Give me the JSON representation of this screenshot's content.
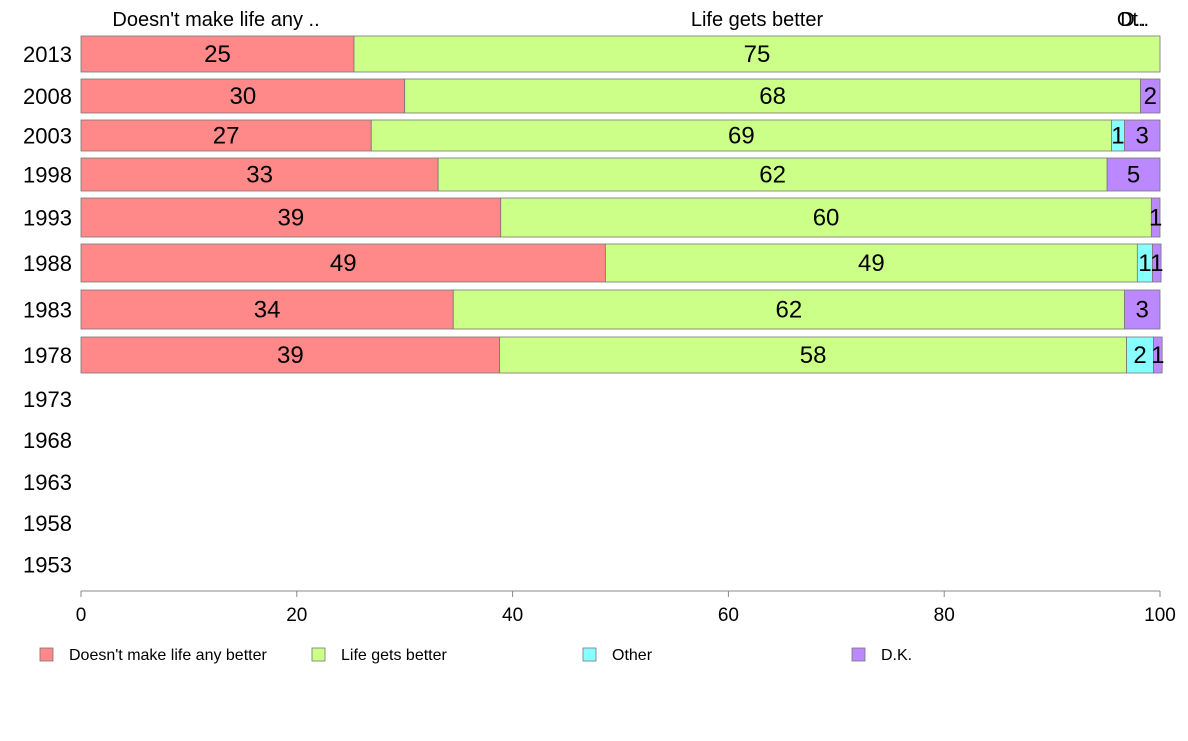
{
  "chart_data": {
    "type": "bar",
    "orientation": "horizontal",
    "stacked": true,
    "title": "",
    "xlabel": "",
    "ylabel": "",
    "xlim": [
      0,
      100
    ],
    "x_ticks": [
      "0",
      "20",
      "40",
      "60",
      "80",
      "100"
    ],
    "categories": [
      "2013",
      "2008",
      "2003",
      "1998",
      "1993",
      "1988",
      "1983",
      "1978",
      "1973",
      "1968",
      "1963",
      "1958",
      "1953"
    ],
    "top_labels": [
      "Doesn't make life any ..",
      "Life gets better",
      "Ot..",
      "D.."
    ],
    "series": [
      {
        "name": "Doesn't make life any better",
        "color": "#ff8888",
        "values": [
          25.3,
          30.0,
          26.9,
          33.1,
          38.9,
          48.6,
          34.5,
          38.8,
          null,
          null,
          null,
          null,
          null
        ],
        "labels": [
          "25",
          "30",
          "27",
          "33",
          "39",
          "49",
          "34",
          "39",
          "",
          "",
          "",
          "",
          ""
        ]
      },
      {
        "name": "Life gets better",
        "color": "#ccff88",
        "values": [
          74.7,
          68.2,
          68.6,
          62.0,
          60.3,
          49.3,
          62.2,
          58.1,
          null,
          null,
          null,
          null,
          null
        ],
        "labels": [
          "75",
          "68",
          "69",
          "62",
          "60",
          "49",
          "62",
          "58",
          "",
          "",
          "",
          "",
          ""
        ]
      },
      {
        "name": "Other",
        "color": "#88ffff",
        "values": [
          0,
          0,
          1.2,
          0,
          0,
          1.4,
          0,
          2.5,
          null,
          null,
          null,
          null,
          null
        ],
        "labels": [
          "",
          "",
          "1",
          "",
          "",
          "1",
          "",
          "2",
          "",
          "",
          "",
          "",
          ""
        ]
      },
      {
        "name": "D.K.",
        "color": "#bb88ff",
        "values": [
          0,
          1.8,
          3.3,
          4.9,
          0.8,
          0.8,
          3.3,
          0.8,
          null,
          null,
          null,
          null,
          null
        ],
        "labels": [
          "",
          "2",
          "3",
          "5",
          "1",
          "1",
          "3",
          "1",
          "",
          "",
          "",
          "",
          ""
        ]
      }
    ],
    "legend": {
      "position": "bottom",
      "items": [
        "Doesn't make life any better",
        "Life gets better",
        "Other",
        "D.K."
      ]
    },
    "grid": false
  }
}
